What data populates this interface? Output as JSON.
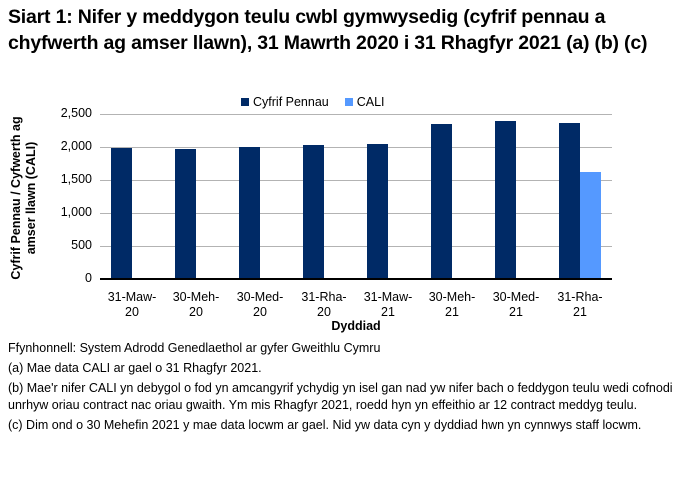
{
  "title": "Siart 1: Nifer y meddygon teulu cwbl gymwysedig (cyfrif pennau a chyfwerth ag amser llawn), 31 Mawrth 2020 i 31 Rhagfyr 2021 (a) (b) (c)",
  "legend": [
    {
      "label": "Cyfrif Pennau",
      "color": "#002A66"
    },
    {
      "label": "CALI",
      "color": "#5599FF"
    }
  ],
  "axes": {
    "ylabel": "Cyfrif Pennau / Cyfwerth ag amser llawn (CALI)",
    "xlabel": "Dyddiad",
    "yticks": [
      "0",
      "500",
      "1,000",
      "1,500",
      "2,000",
      "2,500"
    ]
  },
  "xticks": [
    {
      "line1": "31-Maw-",
      "line2": "20"
    },
    {
      "line1": "30-Meh-",
      "line2": "20"
    },
    {
      "line1": "30-Med-",
      "line2": "20"
    },
    {
      "line1": "31-Rha-",
      "line2": "20"
    },
    {
      "line1": "31-Maw-",
      "line2": "21"
    },
    {
      "line1": "30-Meh-",
      "line2": "21"
    },
    {
      "line1": "30-Med-",
      "line2": "21"
    },
    {
      "line1": "31-Rha-",
      "line2": "21"
    }
  ],
  "notes": {
    "source": "Ffynhonnell: System Adrodd Genedlaethol ar gyfer Gweithlu Cymru",
    "a": "(a) Mae data CALI ar gael o 31 Rhagfyr 2021.",
    "b": "(b) Mae'r nifer CALI yn debygol o fod yn amcangyrif ychydig yn isel gan nad yw nifer bach o feddygon teulu wedi cofnodi unrhyw oriau contract nac oriau gwaith. Ym mis Rhagfyr 2021, roedd hyn yn effeithio ar 12 contract meddyg teulu.",
    "c": "(c) Dim ond o 30 Mehefin 2021 y mae data locwm ar gael. Nid yw data cyn y dyddiad hwn yn cynnwys staff locwm."
  },
  "chart_data": {
    "type": "bar",
    "title": "Siart 1: Nifer y meddygon teulu cwbl gymwysedig (cyfrif pennau a chyfwerth ag amser llawn), 31 Mawrth 2020 i 31 Rhagfyr 2021 (a) (b) (c)",
    "categories": [
      "31-Maw-20",
      "30-Meh-20",
      "30-Med-20",
      "31-Rha-20",
      "31-Maw-21",
      "30-Meh-21",
      "30-Med-21",
      "31-Rha-21"
    ],
    "series": [
      {
        "name": "Cyfrif Pennau",
        "color": "#002A66",
        "values": [
          1970,
          1955,
          1985,
          2015,
          2030,
          2335,
          2380,
          2350
        ]
      },
      {
        "name": "CALI",
        "color": "#5599FF",
        "values": [
          null,
          null,
          null,
          null,
          null,
          null,
          null,
          1605
        ]
      }
    ],
    "xlabel": "Dyddiad",
    "ylabel": "Cyfrif Pennau / Cyfwerth ag amser llawn (CALI)",
    "ylim": [
      0,
      2500
    ],
    "yticks": [
      0,
      500,
      1000,
      1500,
      2000,
      2500
    ],
    "grid": true,
    "legend_position": "top"
  }
}
